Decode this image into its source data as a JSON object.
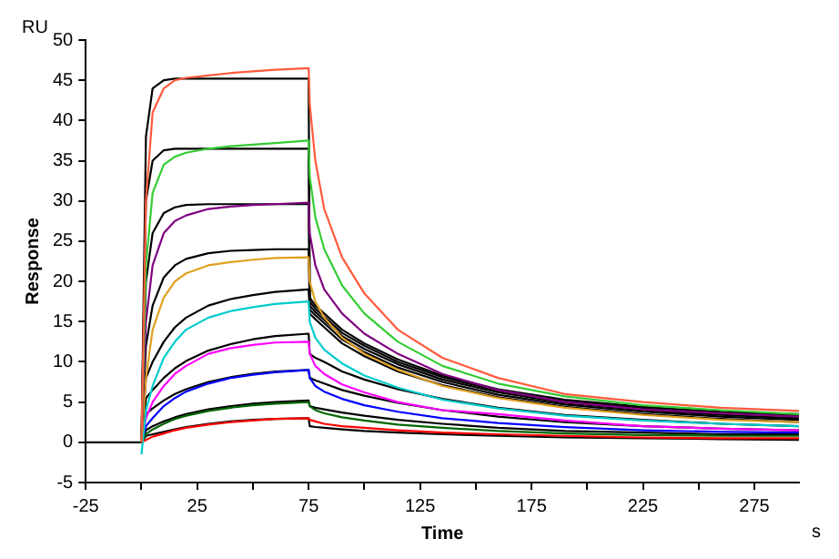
{
  "chart_data": {
    "type": "line",
    "xlabel": "Time",
    "ylabel": "Response",
    "annotations": [
      "RU",
      "s"
    ],
    "x": [
      -25,
      -1,
      0,
      2,
      5,
      10,
      15,
      20,
      30,
      40,
      50,
      60,
      75,
      75.5,
      78,
      82,
      90,
      100,
      115,
      135,
      160,
      190,
      225,
      260,
      295
    ],
    "xlim": [
      -25,
      295
    ],
    "xticks": [
      -25,
      {
        "value": 0,
        "label": null
      },
      25,
      {
        "value": 50,
        "label": null
      },
      75,
      {
        "value": 100,
        "label": null
      },
      125,
      {
        "value": 150,
        "label": null
      },
      175,
      {
        "value": 200,
        "label": null
      },
      225,
      {
        "value": 250,
        "label": null
      },
      275
    ],
    "ylim": [
      -5,
      50
    ],
    "yticks": [
      -5,
      0,
      5,
      10,
      15,
      20,
      25,
      30,
      35,
      40,
      45,
      50
    ],
    "grid": false,
    "legend": false,
    "marker": "none",
    "line_style": "solid",
    "series": [
      {
        "color": "#ff5a3c",
        "values": [
          null,
          null,
          0,
          30,
          41,
          44,
          45,
          45.3,
          45.6,
          45.9,
          46.1,
          46.3,
          46.5,
          42,
          35,
          29,
          23,
          18.5,
          14,
          10.5,
          8,
          6,
          5,
          4.3,
          3.9
        ]
      },
      {
        "color": "#33cc33",
        "values": [
          null,
          null,
          0,
          22,
          31,
          34.5,
          35.5,
          36,
          36.5,
          36.8,
          37,
          37.2,
          37.5,
          33,
          28,
          24,
          19.5,
          16,
          12.5,
          9.5,
          7.3,
          5.7,
          4.6,
          4,
          3.5
        ]
      },
      {
        "color": "#800080",
        "values": [
          null,
          null,
          0,
          15,
          22,
          26,
          27.5,
          28.2,
          29,
          29.3,
          29.5,
          29.6,
          29.8,
          26,
          22,
          19,
          16,
          13.5,
          11,
          8.5,
          6.5,
          5,
          4.1,
          3.6,
          3.2
        ]
      },
      {
        "color": "#e0a020",
        "values": [
          null,
          null,
          0,
          8,
          14,
          18,
          20,
          21,
          22,
          22.4,
          22.7,
          22.9,
          23,
          20,
          17.5,
          15.5,
          13,
          11,
          9,
          7,
          5.5,
          4.3,
          3.4,
          2.8,
          2.5
        ]
      },
      {
        "color": "#00cccc",
        "values": [
          null,
          null,
          -1.5,
          4,
          7,
          10.5,
          12.5,
          14,
          15.5,
          16.3,
          16.8,
          17.2,
          17.5,
          15,
          13,
          11.5,
          9.8,
          8.3,
          6.8,
          5.3,
          4.2,
          3.3,
          2.7,
          2.3,
          2
        ]
      },
      {
        "color": "#ff00ff",
        "values": [
          null,
          null,
          0,
          3,
          5,
          7,
          8.5,
          9.5,
          11,
          11.7,
          12.1,
          12.4,
          12.5,
          11,
          9.5,
          8.5,
          7.2,
          6.2,
          5,
          4,
          3.5,
          2.7,
          2,
          1.7,
          1.5
        ]
      },
      {
        "color": "#0000ff",
        "values": [
          null,
          null,
          0,
          2,
          3,
          4.5,
          5.5,
          6.3,
          7.3,
          8,
          8.4,
          8.7,
          9,
          8,
          7,
          6.3,
          5.4,
          4.6,
          3.8,
          3,
          2.4,
          1.9,
          1.5,
          1.3,
          1.2
        ]
      },
      {
        "color": "#006400",
        "values": [
          null,
          null,
          0,
          1,
          1.6,
          2.3,
          2.9,
          3.3,
          3.9,
          4.3,
          4.6,
          4.8,
          5,
          4.5,
          4,
          3.6,
          3.1,
          2.7,
          2.2,
          1.8,
          1.4,
          1.1,
          0.9,
          0.8,
          0.8
        ]
      },
      {
        "color": "#ff0000",
        "values": [
          null,
          null,
          0,
          0.3,
          0.7,
          1.1,
          1.5,
          1.8,
          2.2,
          2.5,
          2.7,
          2.9,
          3,
          2.8,
          2.6,
          2.3,
          2,
          1.8,
          1.5,
          1.2,
          1,
          0.8,
          0.6,
          0.5,
          0.5
        ]
      },
      {
        "color": "#000000",
        "values": [
          0,
          0,
          0,
          38,
          44,
          45,
          45.2,
          45.2,
          45.2,
          45.2,
          45.2,
          45.2,
          45.2,
          18,
          17,
          16,
          14,
          12.3,
          10.3,
          8.3,
          6.6,
          5.3,
          4.4,
          3.8,
          3.5
        ]
      },
      {
        "color": "#000000",
        "values": [
          null,
          null,
          0,
          30,
          35,
          36.3,
          36.5,
          36.5,
          36.5,
          36.5,
          36.5,
          36.5,
          36.5,
          17.5,
          16.6,
          15.6,
          13.6,
          12,
          10,
          8.1,
          6.4,
          5.1,
          4.2,
          3.6,
          3.3
        ]
      },
      {
        "color": "#000000",
        "values": [
          null,
          null,
          0,
          20,
          26,
          28.5,
          29.2,
          29.5,
          29.6,
          29.6,
          29.6,
          29.6,
          29.6,
          17,
          16.2,
          15.2,
          13.2,
          11.6,
          9.7,
          7.8,
          6.2,
          4.9,
          4,
          3.4,
          3
        ]
      },
      {
        "color": "#000000",
        "values": [
          null,
          null,
          0,
          12,
          17,
          20.5,
          22,
          22.8,
          23.5,
          23.8,
          23.9,
          24,
          24,
          16.5,
          15.8,
          14.8,
          12.8,
          11.2,
          9.3,
          7.5,
          5.9,
          4.7,
          3.8,
          3.2,
          2.8
        ]
      },
      {
        "color": "#000000",
        "values": [
          null,
          null,
          0,
          8,
          10,
          12.5,
          14.3,
          15.5,
          17,
          17.8,
          18.3,
          18.7,
          19,
          16,
          15.3,
          14.3,
          12.3,
          10.7,
          8.8,
          7.1,
          5.6,
          4.4,
          3.5,
          2.9,
          2.5
        ]
      },
      {
        "color": "#000000",
        "values": [
          null,
          null,
          0,
          5.5,
          6.5,
          8,
          9.2,
          10.1,
          11.4,
          12.2,
          12.8,
          13.2,
          13.5,
          11,
          10.5,
          10,
          8.8,
          7.8,
          6.6,
          5.4,
          4.3,
          3.4,
          2.8,
          2.3,
          2
        ]
      },
      {
        "color": "#000000",
        "values": [
          null,
          null,
          0,
          3.5,
          4.2,
          5.2,
          6,
          6.6,
          7.5,
          8.1,
          8.5,
          8.8,
          9,
          8,
          7.7,
          7.3,
          6.5,
          5.8,
          4.9,
          4,
          3.2,
          2.5,
          2,
          1.7,
          1.5
        ]
      },
      {
        "color": "#000000",
        "values": [
          null,
          null,
          0,
          1.5,
          2,
          2.6,
          3.1,
          3.5,
          4.1,
          4.5,
          4.8,
          5,
          5.2,
          4.5,
          4.3,
          4.1,
          3.7,
          3.3,
          2.8,
          2.3,
          1.8,
          1.4,
          1.2,
          1,
          1
        ]
      },
      {
        "color": "#000000",
        "values": [
          null,
          null,
          0,
          0.8,
          1,
          1.3,
          1.6,
          1.9,
          2.3,
          2.6,
          2.8,
          2.9,
          3,
          2,
          1.9,
          1.8,
          1.6,
          1.4,
          1.2,
          1,
          0.8,
          0.6,
          0.5,
          0.4,
          0.3
        ]
      }
    ]
  }
}
